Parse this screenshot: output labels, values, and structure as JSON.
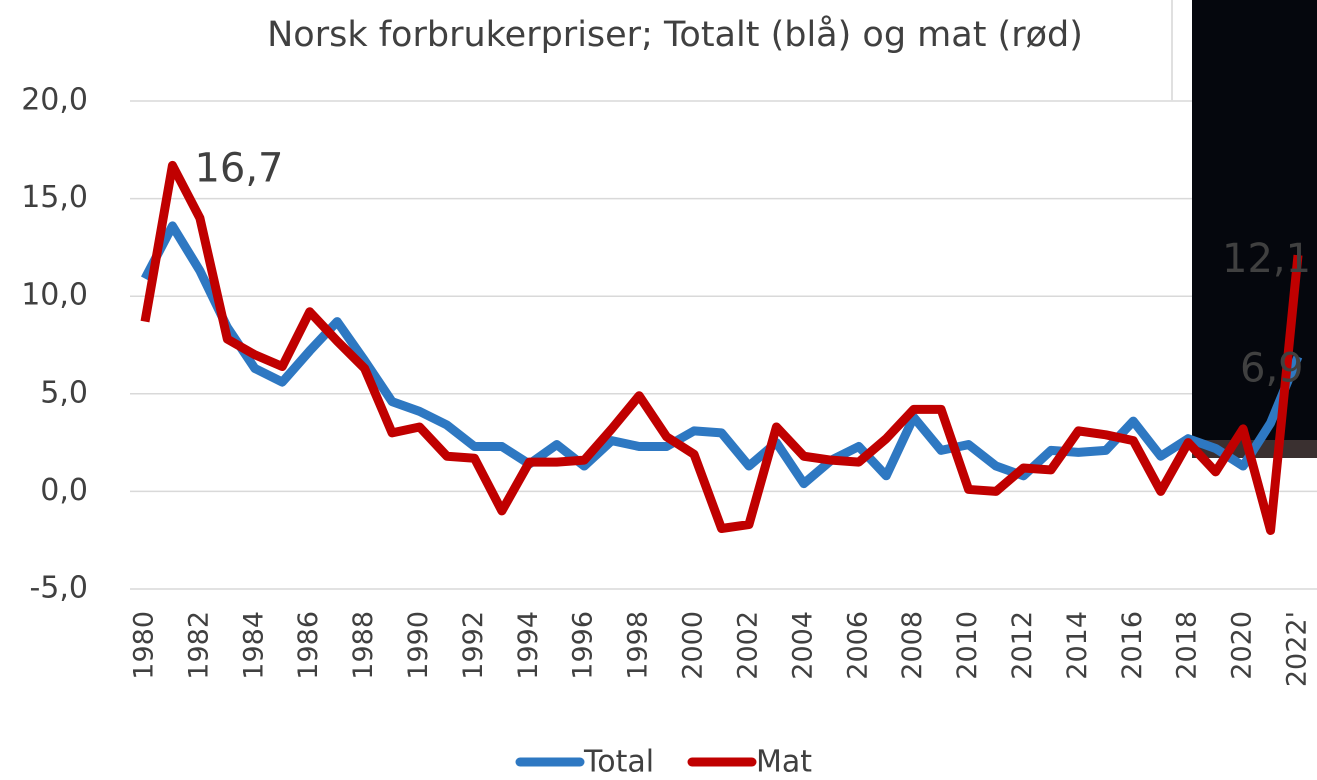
{
  "chart_data": {
    "type": "line",
    "title": "Norsk forbrukerpriser; Totalt (blå) og mat (rød)",
    "categories": [
      "1980",
      null,
      "1982",
      null,
      "1984",
      null,
      "1986",
      null,
      "1988",
      null,
      "1990",
      null,
      "1992",
      null,
      "1994",
      null,
      "1996",
      null,
      "1998",
      null,
      "2000",
      null,
      "2002",
      null,
      "2004",
      null,
      "2006",
      null,
      "2008",
      null,
      "2010",
      null,
      "2012",
      null,
      "2014",
      null,
      "2016",
      null,
      "2018",
      null,
      "2020",
      null,
      "2022'"
    ],
    "series": [
      {
        "name": "Total",
        "color": "#2e78c2",
        "values": [
          10.9,
          13.6,
          11.3,
          8.4,
          6.3,
          5.6,
          7.2,
          8.7,
          6.7,
          4.6,
          4.1,
          3.4,
          2.3,
          2.3,
          1.4,
          2.4,
          1.3,
          2.6,
          2.3,
          2.3,
          3.1,
          3.0,
          1.3,
          2.5,
          0.4,
          1.6,
          2.3,
          0.8,
          3.8,
          2.1,
          2.4,
          1.3,
          0.8,
          2.1,
          2.0,
          2.1,
          3.6,
          1.8,
          2.7,
          2.2,
          1.3,
          3.5,
          6.9
        ],
        "value_labels": [
          null,
          null,
          null,
          null,
          null,
          null,
          null,
          null,
          null,
          null,
          null,
          null,
          null,
          null,
          null,
          null,
          null,
          null,
          null,
          null,
          null,
          null,
          null,
          null,
          null,
          null,
          null,
          null,
          null,
          null,
          null,
          null,
          null,
          null,
          null,
          null,
          null,
          null,
          null,
          null,
          null,
          null,
          "6,9"
        ]
      },
      {
        "name": "Mat",
        "color": "#c00000",
        "values": [
          8.7,
          16.7,
          14.0,
          7.8,
          7.0,
          6.4,
          9.2,
          7.7,
          6.3,
          3.0,
          3.3,
          1.8,
          1.7,
          -1.0,
          1.5,
          1.5,
          1.6,
          3.2,
          4.9,
          2.8,
          1.9,
          -1.9,
          -1.7,
          3.3,
          1.8,
          1.6,
          1.5,
          2.7,
          4.2,
          4.2,
          0.1,
          0.0,
          1.2,
          1.1,
          3.1,
          2.9,
          2.6,
          0.0,
          2.5,
          1.0,
          3.2,
          -2.0,
          12.1
        ],
        "value_labels": [
          null,
          "16,7",
          null,
          null,
          null,
          null,
          null,
          null,
          null,
          null,
          null,
          null,
          null,
          null,
          null,
          null,
          null,
          null,
          null,
          null,
          null,
          null,
          null,
          null,
          null,
          null,
          null,
          null,
          null,
          null,
          null,
          null,
          null,
          null,
          null,
          null,
          null,
          null,
          null,
          null,
          null,
          null,
          "12,1"
        ]
      }
    ],
    "ylim": [
      -5,
      20
    ],
    "yticks": [
      {
        "value": -5,
        "label": "-5,0"
      },
      {
        "value": 0,
        "label": "0,0"
      },
      {
        "value": 5,
        "label": "5,0"
      },
      {
        "value": 10,
        "label": "10,0"
      },
      {
        "value": 15,
        "label": "15,0"
      },
      {
        "value": 20,
        "label": "20,0"
      }
    ],
    "grid": true,
    "legend": "bottom"
  }
}
